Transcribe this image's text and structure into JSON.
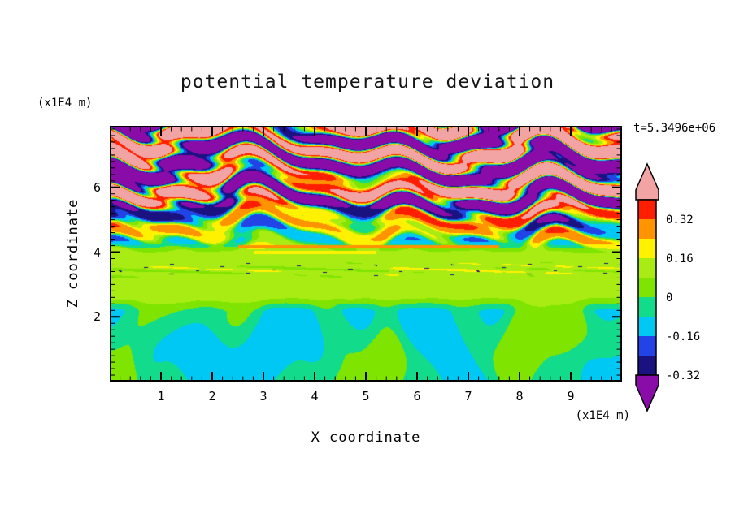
{
  "title": "potential temperature deviation",
  "annotations": {
    "time_label": "t=5.3496e+06",
    "y_unit_label": "(x1E4 m)",
    "x_unit_label": "(x1E4 m)"
  },
  "axes": {
    "x": {
      "label": "X coordinate",
      "range": [
        0,
        10
      ],
      "ticks": [
        1,
        2,
        3,
        4,
        5,
        6,
        7,
        8,
        9
      ],
      "minor_step": 0.2
    },
    "y": {
      "label": "Z coordinate",
      "range": [
        0,
        7.9
      ],
      "ticks": [
        2,
        4,
        6
      ],
      "minor_step": 0.2
    }
  },
  "chart_data": {
    "type": "heatmap",
    "title": "potential temperature deviation",
    "xlabel": "X coordinate",
    "ylabel": "Z coordinate",
    "x_units": "(x1E4 m)",
    "y_units": "(x1E4 m)",
    "time_annotation": "t=5.3496e+06",
    "xlim": [
      0,
      10
    ],
    "ylim": [
      0,
      7.9
    ],
    "field": "potential temperature deviation",
    "colorbar": {
      "tick_labels": [
        "0.32",
        "0.16",
        "0",
        "-0.16",
        "-0.32"
      ],
      "tick_values": [
        0.32,
        0.16,
        0,
        -0.16,
        -0.32
      ],
      "band_width": 0.08,
      "over": {
        "threshold": 0.4,
        "color": "#F2A4A4",
        "name": "pink"
      },
      "under": {
        "threshold": -0.32,
        "color": "#8A0CA8",
        "name": "purple"
      },
      "bands": [
        {
          "min": 0.32,
          "max": 0.4,
          "color": "#FF1E00",
          "name": "red"
        },
        {
          "min": 0.24,
          "max": 0.32,
          "color": "#FF9300",
          "name": "orange"
        },
        {
          "min": 0.16,
          "max": 0.24,
          "color": "#FFF200",
          "name": "yellow"
        },
        {
          "min": 0.08,
          "max": 0.16,
          "color": "#A8EC14",
          "name": "yellow-green"
        },
        {
          "min": 0,
          "max": 0.08,
          "color": "#7FE400",
          "name": "green"
        },
        {
          "min": -0.08,
          "max": 0,
          "color": "#12DB8C",
          "name": "spring-green"
        },
        {
          "min": -0.16,
          "max": -0.08,
          "color": "#00C8F5",
          "name": "cyan"
        },
        {
          "min": -0.24,
          "max": -0.16,
          "color": "#2244E6",
          "name": "blue"
        },
        {
          "min": -0.32,
          "max": -0.24,
          "color": "#1A1280",
          "name": "navy"
        }
      ]
    },
    "structure": {
      "description": "Stratified turbulent field: wavy alternating pink/purple layers aloft (|dev|>0.32) with thin red-orange-yellow and cyan-blue-navy filaments at layer interfaces, mixed red/orange and blue/navy streaky layers at mid levels around z=4-5e4 m, a nearly uniform yellow-green band around z=2.5-4e4 m with thin streaks and a yellow line near z=4e4 m, and a spring-green near-surface region with bright green blobs below z=2.3e4 m.",
      "profile": [
        {
          "t": 0.0,
          "base": -0.045,
          "stripe": 0,
          "blob": 0.1
        },
        {
          "t": 0.27,
          "base": -0.04,
          "stripe": 0,
          "blob": 0.105
        },
        {
          "t": 0.34,
          "base": 0.115,
          "stripe": 0.012,
          "blob": 0.012
        },
        {
          "t": 0.5,
          "base": 0.115,
          "stripe": 0.02,
          "blob": 0.012
        },
        {
          "t": 0.56,
          "base": 0.05,
          "stripe": 0.24,
          "blob": 0
        },
        {
          "t": 0.66,
          "base": 0.02,
          "stripe": 0.37,
          "blob": 0
        },
        {
          "t": 0.72,
          "base": 0.01,
          "stripe": 0.6,
          "blob": 0
        },
        {
          "t": 1.0,
          "base": 0.02,
          "stripe": 0.62,
          "blob": 0
        }
      ]
    }
  }
}
